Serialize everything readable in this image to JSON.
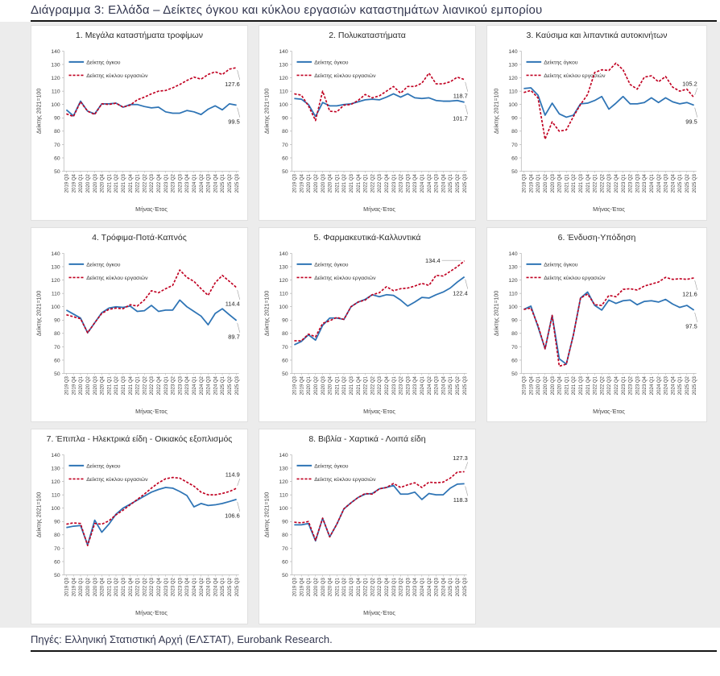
{
  "page": {
    "title": "Διάγραμμα 3: Ελλάδα – Δείκτες όγκου και κύκλου εργασιών καταστημάτων λιανικού εμπορίου",
    "source": "Πηγές: Ελληνική Στατιστική Αρχή (ΕΛΣΤΑΤ), Eurobank Research."
  },
  "colors": {
    "volume": "#2e74b5",
    "turnover": "#c00021",
    "tick_text": "#3f3f3f",
    "axis_line": "#b5b5b5",
    "end_label": "#1f1f1f",
    "leader_line": "#a0a0a0"
  },
  "legend": {
    "volume": "Δείκτης όγκου",
    "turnover": "Δείκτης κύκλου εργασιών"
  },
  "axes": {
    "ylabel": "Δείκτης 2021=100",
    "xlabel": "Μήνας-Έτος",
    "ylim": [
      50,
      140
    ],
    "ytick_step": 10,
    "grid": "off",
    "legend_position": "top-left-inside"
  },
  "categories": [
    "2019 Q3",
    "2019 Q4",
    "2020 Q1",
    "2020 Q2",
    "2020 Q3",
    "2020 Q4",
    "2021 Q1",
    "2021 Q2",
    "2021 Q3",
    "2021 Q4",
    "2022 Q1",
    "2022 Q2",
    "2022 Q3",
    "2022 Q4",
    "2023 Q1",
    "2023 Q2",
    "2023 Q3",
    "2023 Q4",
    "2024 Q1",
    "2024 Q2",
    "2024 Q3",
    "2024 Q4",
    "2025 Q1",
    "2025 Q2",
    "2025 Q3"
  ],
  "chart_data": [
    {
      "type": "line",
      "title": "1. Μεγάλα καταστήματα τροφίμων",
      "series": [
        {
          "name": "Δείκτης όγκου",
          "key": "volume",
          "values": [
            96,
            91.5,
            102.5,
            95,
            93,
            100.5,
            100.5,
            101,
            98,
            100,
            100,
            98.5,
            97.5,
            98,
            94.5,
            93.5,
            93.5,
            95.5,
            94.5,
            92.5,
            96.5,
            99,
            96,
            100.5,
            99.5
          ]
        },
        {
          "name": "Δείκτης κύκλου εργασιών",
          "key": "turnover",
          "values": [
            93,
            91,
            102,
            95,
            92.5,
            100.5,
            100,
            101,
            98,
            99.5,
            103.5,
            105.5,
            108,
            110,
            110.5,
            112.5,
            115,
            118,
            120.5,
            119,
            122.5,
            124.5,
            122.5,
            126.5,
            127.6
          ]
        }
      ],
      "end_labels": [
        {
          "series": "turnover",
          "text": "127.6",
          "pos": "below"
        },
        {
          "series": "volume",
          "text": "99.5",
          "pos": "below"
        }
      ]
    },
    {
      "type": "line",
      "title": "2. Πολυκαταστήματα",
      "series": [
        {
          "name": "Δείκτης όγκου",
          "key": "volume",
          "values": [
            104.5,
            104,
            100,
            91,
            101.5,
            99,
            99,
            100,
            100.5,
            102,
            103.5,
            104,
            103.5,
            105.5,
            108,
            105.5,
            108,
            105,
            104.5,
            105,
            103,
            102.5,
            102.5,
            103,
            101.7
          ]
        },
        {
          "name": "Δείκτης κύκλου εργασιών",
          "key": "turnover",
          "values": [
            108,
            107,
            99,
            88,
            110,
            95,
            94.5,
            99.5,
            100,
            103,
            107.5,
            105,
            106.5,
            110,
            113.5,
            108.5,
            113.5,
            113.5,
            116,
            123.5,
            115.5,
            115.5,
            117,
            120.5,
            118.7
          ]
        }
      ],
      "end_labels": [
        {
          "series": "turnover",
          "text": "118.7",
          "pos": "below"
        },
        {
          "series": "volume",
          "text": "101.7",
          "pos": "below"
        }
      ]
    },
    {
      "type": "line",
      "title": "3. Καύσιμα και λιπαντικά αυτοκινήτων",
      "series": [
        {
          "name": "Δείκτης όγκου",
          "key": "volume",
          "values": [
            112,
            112.5,
            107,
            92,
            101,
            93,
            90.5,
            92,
            100.5,
            101,
            103,
            106,
            96.5,
            101,
            106,
            100.5,
            100.5,
            101.5,
            105,
            101.5,
            105,
            102,
            100.5,
            101.5,
            99.5
          ]
        },
        {
          "name": "Δείκτης κύκλου εργασιών",
          "key": "turnover",
          "values": [
            109,
            110.5,
            105,
            74,
            87,
            80,
            81,
            91,
            100,
            107.5,
            124,
            126,
            125.5,
            131,
            126,
            115,
            111.5,
            120.5,
            121.5,
            117,
            121,
            113,
            110,
            111.5,
            105.2
          ]
        }
      ],
      "end_labels": [
        {
          "series": "turnover",
          "text": "105.2",
          "pos": "above"
        },
        {
          "series": "volume",
          "text": "99.5",
          "pos": "below"
        }
      ]
    },
    {
      "type": "line",
      "title": "4. Τρόφιμα-Ποτά-Καπνός",
      "series": [
        {
          "name": "Δείκτης όγκου",
          "key": "volume",
          "values": [
            97.5,
            94.5,
            91.5,
            80.5,
            88,
            95.5,
            99,
            100,
            99.5,
            100.5,
            96.5,
            97,
            101,
            96.5,
            97.5,
            97.5,
            105,
            100,
            96.5,
            93,
            86.5,
            95,
            98.5,
            94,
            89.7
          ]
        },
        {
          "name": "Δείκτης κύκλου εργασιών",
          "key": "turnover",
          "values": [
            94,
            92.5,
            91,
            80.5,
            88,
            95,
            98,
            99,
            98.5,
            101.5,
            100.5,
            105,
            112,
            110.5,
            113.5,
            116,
            127.5,
            122,
            119,
            113.5,
            108.5,
            118,
            123.5,
            119,
            114.4
          ]
        }
      ],
      "end_labels": [
        {
          "series": "turnover",
          "text": "114.4",
          "pos": "below"
        },
        {
          "series": "volume",
          "text": "89.7",
          "pos": "below"
        }
      ]
    },
    {
      "type": "line",
      "title": "5. Φαρμακευτικά-Καλλυντικά",
      "series": [
        {
          "name": "Δείκτης όγκου",
          "key": "volume",
          "values": [
            71.5,
            74,
            79,
            75,
            86,
            91.5,
            91.5,
            90.5,
            100,
            103.5,
            105.5,
            109,
            107.5,
            109,
            108.5,
            105,
            100.5,
            103.5,
            107,
            106.5,
            109,
            111,
            114,
            118.5,
            122.4
          ]
        },
        {
          "name": "Δείκτης κύκλου εργασιών",
          "key": "turnover",
          "values": [
            74.5,
            74.5,
            79.5,
            77.5,
            87.5,
            89.5,
            92,
            90.5,
            100,
            103.5,
            105,
            109,
            110.5,
            115,
            112,
            113.5,
            114,
            115.5,
            117.5,
            116,
            123.5,
            123,
            126.5,
            130,
            134.4
          ]
        }
      ],
      "end_labels": [
        {
          "series": "turnover",
          "text": "134.4",
          "pos": "left"
        },
        {
          "series": "volume",
          "text": "122.4",
          "pos": "below"
        }
      ]
    },
    {
      "type": "line",
      "title": "6. Ένδυση-Υπόδηση",
      "series": [
        {
          "name": "Δείκτης όγκου",
          "key": "volume",
          "values": [
            98,
            100.5,
            85,
            68.5,
            93.5,
            61,
            57,
            79,
            106.5,
            111,
            101,
            97.5,
            105,
            102.5,
            104.5,
            105,
            101.5,
            104,
            104.5,
            103.5,
            105.5,
            102,
            99.5,
            101,
            97.5
          ]
        },
        {
          "name": "Δείκτης κύκλου εργασιών",
          "key": "turnover",
          "values": [
            98,
            99,
            86,
            68.5,
            93.5,
            55.5,
            57,
            79,
            106.5,
            109.5,
            101.5,
            101,
            108.5,
            107.5,
            113,
            113.5,
            112.5,
            115.5,
            117,
            118.5,
            122,
            120.5,
            121,
            120.5,
            121.6
          ]
        }
      ],
      "end_labels": [
        {
          "series": "turnover",
          "text": "121.6",
          "pos": "below"
        },
        {
          "series": "volume",
          "text": "97.5",
          "pos": "below"
        }
      ]
    },
    {
      "type": "line",
      "title": "7. Έπιπλα - Ηλεκτρικά είδη - Οικιακός εξοπλισμός",
      "series": [
        {
          "name": "Δείκτης όγκου",
          "key": "volume",
          "values": [
            85.5,
            86.5,
            87,
            72.5,
            91,
            82,
            88,
            95.5,
            100,
            103,
            106,
            109,
            112,
            114,
            115.5,
            115,
            112.5,
            109.5,
            101,
            103.5,
            102,
            102.5,
            103.5,
            105,
            106.6
          ]
        },
        {
          "name": "Δείκτης κύκλου εργασιών",
          "key": "turnover",
          "values": [
            88,
            89,
            88.5,
            72,
            88.5,
            88,
            90.5,
            95,
            98.5,
            102.5,
            106.5,
            110.5,
            115,
            119,
            122,
            123,
            122.5,
            119.5,
            116.5,
            112,
            110,
            110,
            111,
            112.5,
            114.9
          ]
        }
      ],
      "end_labels": [
        {
          "series": "turnover",
          "text": "114.9",
          "pos": "above"
        },
        {
          "series": "volume",
          "text": "106.6",
          "pos": "below"
        }
      ]
    },
    {
      "type": "line",
      "title": "8. Βιβλία - Χαρτικά - Λοιπά είδη",
      "series": [
        {
          "name": "Δείκτης όγκου",
          "key": "volume",
          "values": [
            87.5,
            87.5,
            88.5,
            75.5,
            92.5,
            78.5,
            88,
            99.5,
            104,
            108,
            110.5,
            111,
            114.5,
            115.5,
            117,
            110.5,
            110.5,
            112,
            106.5,
            111,
            110,
            110,
            115,
            118,
            118.3
          ]
        },
        {
          "name": "Δείκτης κύκλου εργασιών",
          "key": "turnover",
          "values": [
            89.5,
            89,
            90,
            76,
            92.5,
            78.5,
            88,
            99.5,
            104,
            108,
            111,
            110.5,
            114.5,
            115.5,
            118.5,
            115.5,
            117.5,
            119,
            115.5,
            119.5,
            119,
            119.5,
            122.5,
            127,
            127.3
          ]
        }
      ],
      "end_labels": [
        {
          "series": "turnover",
          "text": "127.3",
          "pos": "above"
        },
        {
          "series": "volume",
          "text": "118.3",
          "pos": "below"
        }
      ]
    }
  ]
}
